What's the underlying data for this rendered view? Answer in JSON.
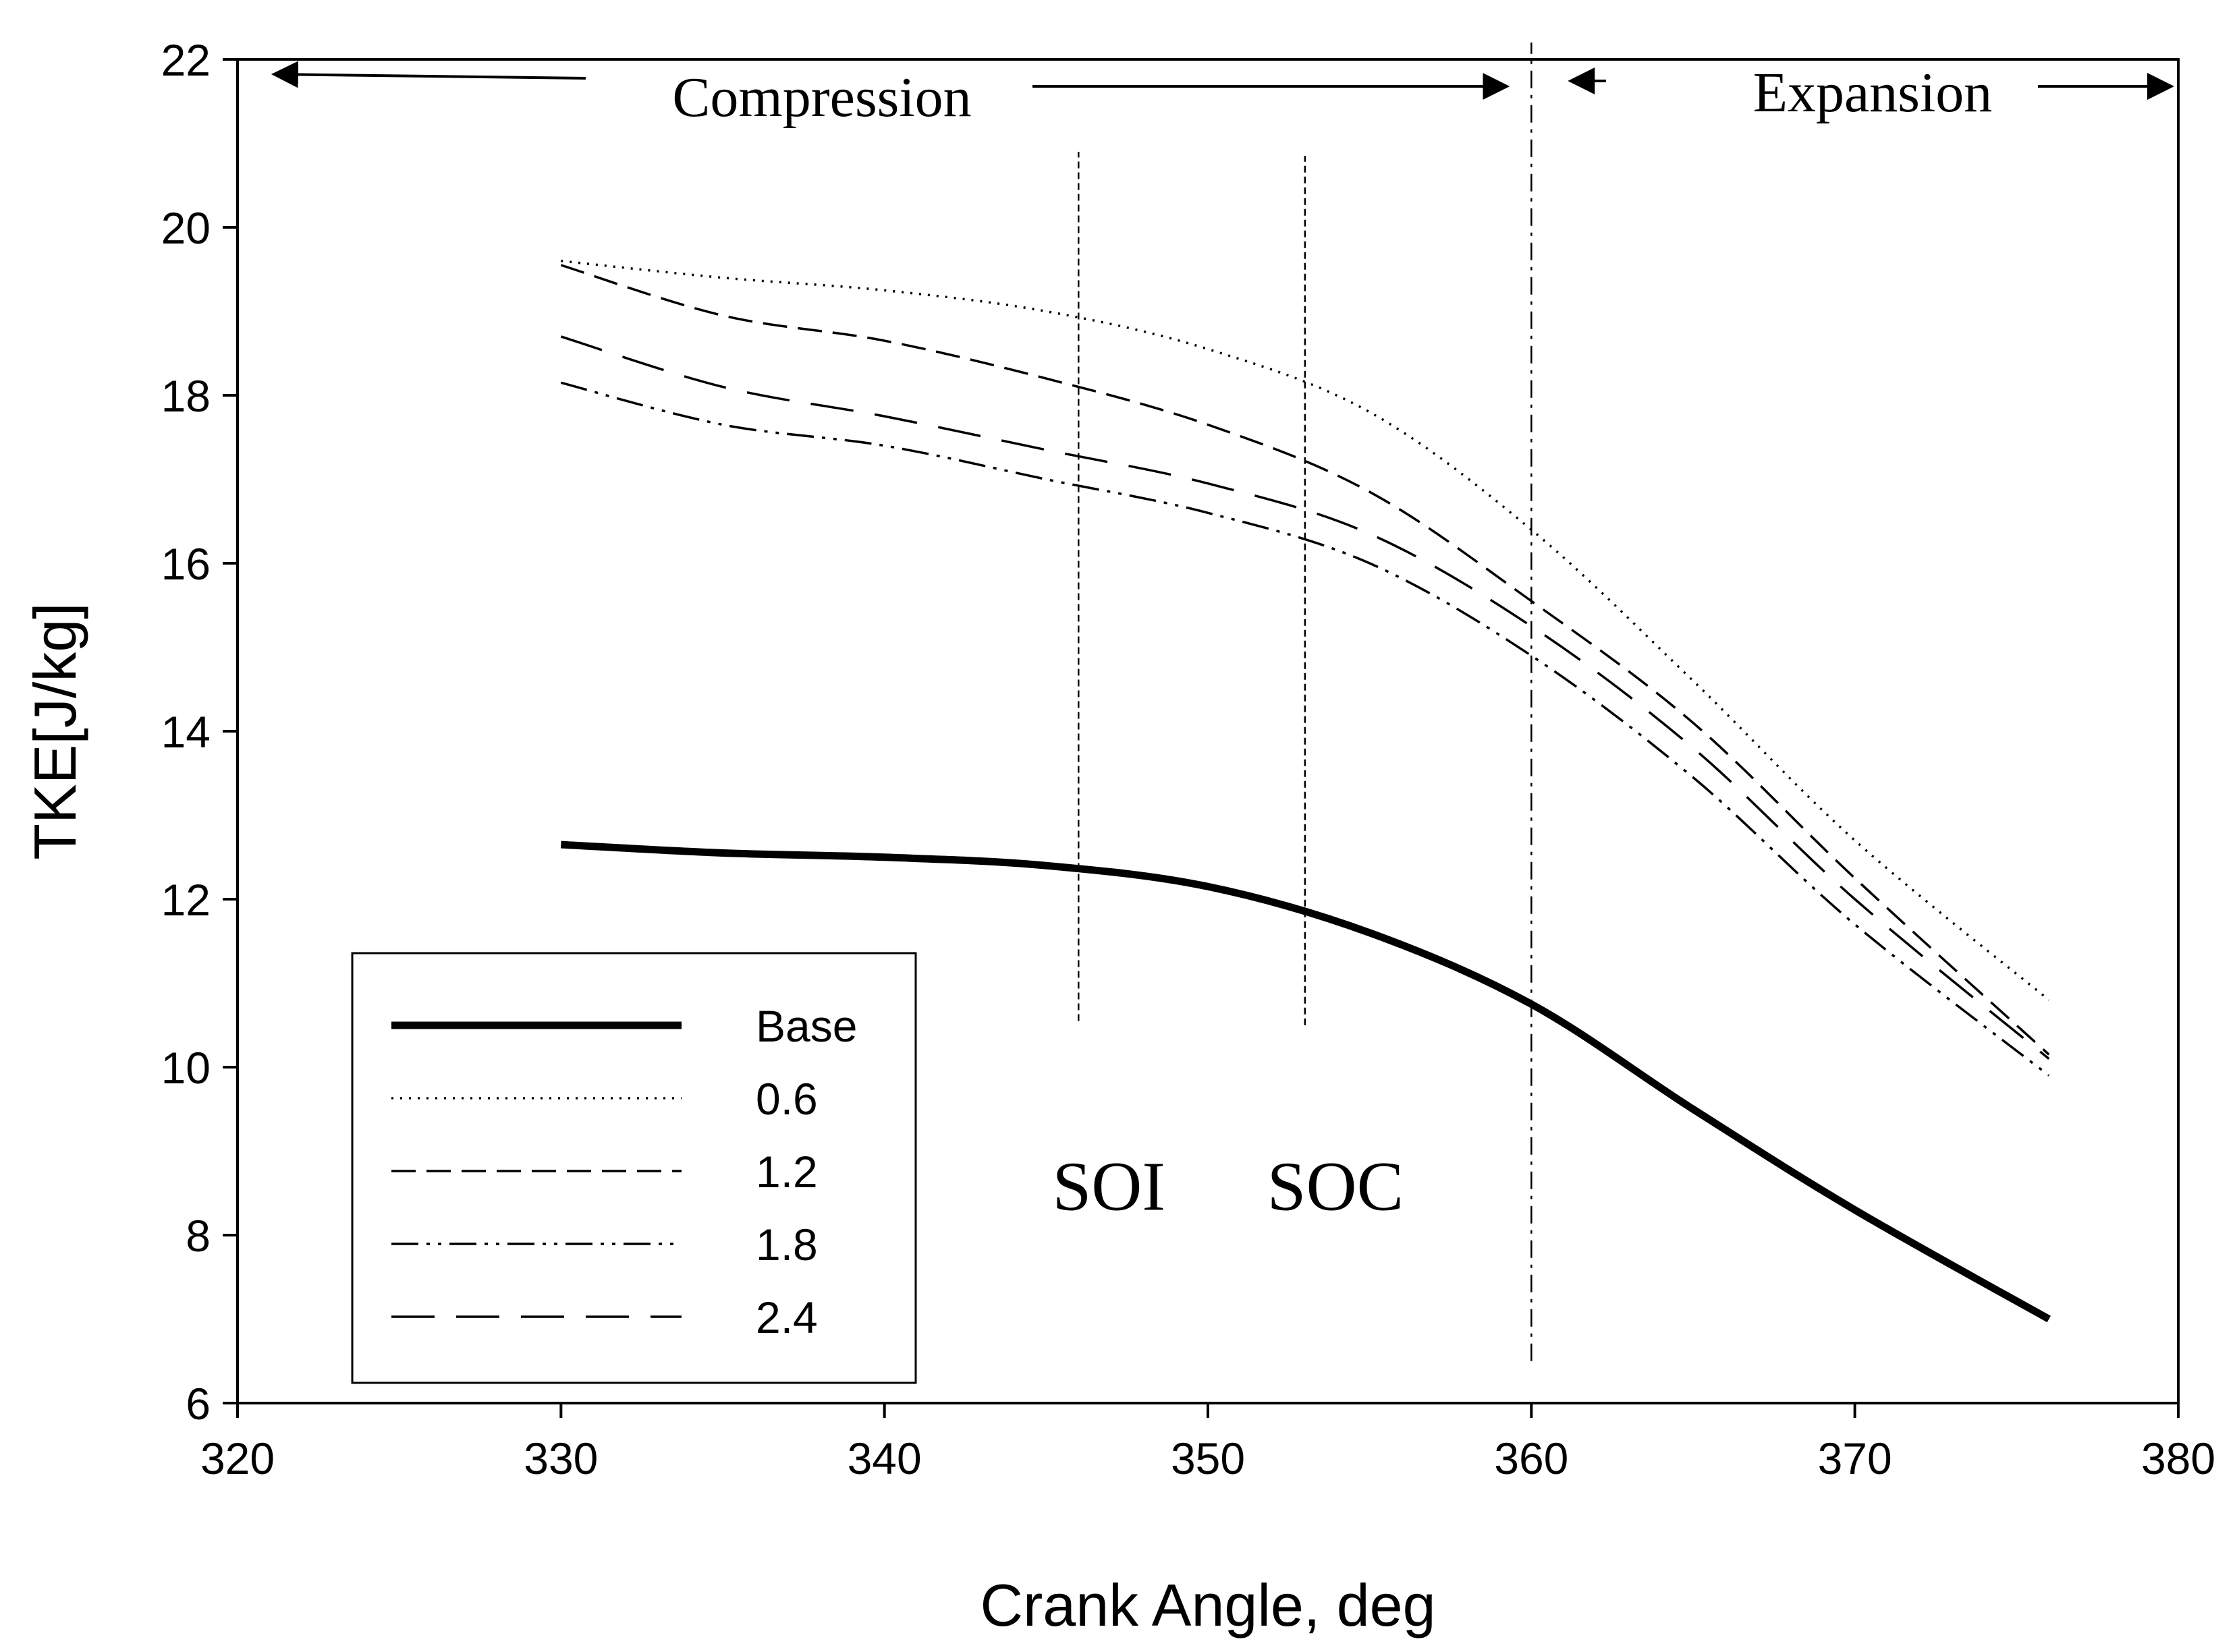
{
  "chart_data": {
    "type": "line",
    "title": "",
    "xlabel": "Crank Angle, deg",
    "ylabel": "TKE[J/kg]",
    "xlim": [
      320,
      380
    ],
    "ylim": [
      6,
      22
    ],
    "xticks": [
      320,
      330,
      340,
      350,
      360,
      370,
      380
    ],
    "yticks": [
      6,
      8,
      10,
      12,
      14,
      16,
      18,
      20,
      22
    ],
    "grid": false,
    "legend_position": "bottom-left",
    "x": [
      330,
      335,
      340,
      345,
      350,
      355,
      360,
      365,
      370,
      376
    ],
    "series": [
      {
        "name": "Base",
        "style": "solid-thick",
        "values": [
          12.65,
          12.55,
          12.5,
          12.4,
          12.15,
          11.6,
          10.75,
          9.5,
          8.3,
          7.0
        ]
      },
      {
        "name": "0.6",
        "style": "dotted",
        "values": [
          19.6,
          19.4,
          19.25,
          19.0,
          18.55,
          17.8,
          16.4,
          14.6,
          12.7,
          10.8
        ]
      },
      {
        "name": "1.2",
        "style": "dashed",
        "values": [
          19.55,
          18.95,
          18.65,
          18.2,
          17.65,
          16.85,
          15.55,
          14.1,
          12.25,
          10.15
        ]
      },
      {
        "name": "1.8",
        "style": "dash-dot-dot",
        "values": [
          18.15,
          17.65,
          17.4,
          17.0,
          16.6,
          16.0,
          14.9,
          13.45,
          11.7,
          9.9
        ]
      },
      {
        "name": "2.4",
        "style": "long-dash",
        "values": [
          18.7,
          18.1,
          17.75,
          17.35,
          16.95,
          16.35,
          15.25,
          13.8,
          12.0,
          10.1
        ]
      }
    ],
    "vertical_markers": [
      {
        "x": 346,
        "y_from": 10.55,
        "y_to": 20.9,
        "style": "dotted",
        "label": "SOI"
      },
      {
        "x": 353,
        "y_from": 10.5,
        "y_to": 20.85,
        "style": "dotted",
        "label": "SOC"
      },
      {
        "x": 360,
        "y_from": 6.5,
        "y_to": 22.2,
        "style": "dash-dot",
        "label": ""
      }
    ],
    "annotations": [
      {
        "text": "Compression",
        "arrow_from_x": 360,
        "arrow_to_x": 321
      },
      {
        "text": "Expansion",
        "arrow_from_x": 361,
        "arrow_to_x": 380
      }
    ]
  }
}
